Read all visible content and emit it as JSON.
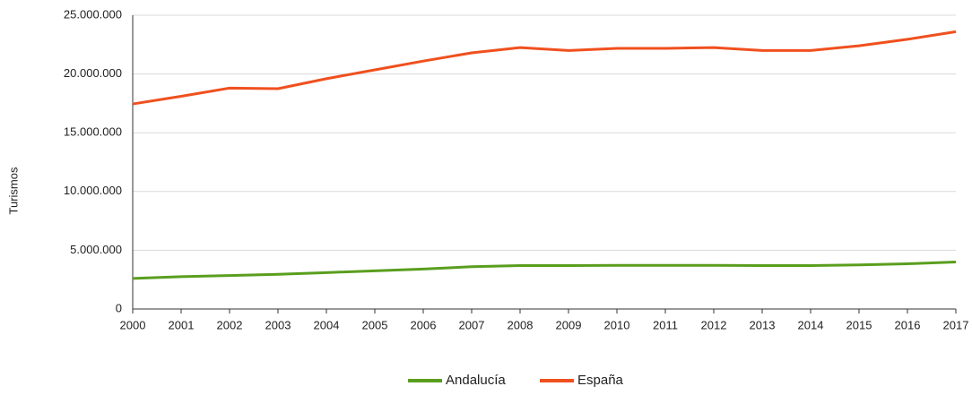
{
  "chart_data": {
    "type": "line",
    "ylabel": "Turismos",
    "x": [
      2000,
      2001,
      2002,
      2003,
      2004,
      2005,
      2006,
      2007,
      2008,
      2009,
      2010,
      2011,
      2012,
      2013,
      2014,
      2015,
      2016,
      2017
    ],
    "xlim": [
      2000,
      2017
    ],
    "xticks": [
      2000,
      2001,
      2002,
      2003,
      2004,
      2005,
      2006,
      2007,
      2008,
      2009,
      2010,
      2011,
      2012,
      2013,
      2014,
      2015,
      2016,
      2017
    ],
    "ylim": [
      0,
      25000000
    ],
    "yticks": [
      0,
      {
        "value": 5000000,
        "label": "5.000.000"
      },
      {
        "value": 10000000,
        "label": "10.000.000"
      },
      {
        "value": 15000000,
        "label": "15.000.000"
      },
      {
        "value": 20000000,
        "label": "20.000.000"
      },
      {
        "value": 25000000,
        "label": "25.000.000"
      }
    ],
    "grid": true,
    "legend": "bottom",
    "series": [
      {
        "name": "Andalucía",
        "color": "#5a9e1e",
        "values": [
          2600000,
          2750000,
          2850000,
          2950000,
          3100000,
          3250000,
          3400000,
          3600000,
          3700000,
          3700000,
          3720000,
          3720000,
          3720000,
          3700000,
          3700000,
          3750000,
          3850000,
          4000000
        ]
      },
      {
        "name": "España",
        "color": "#f0501e",
        "values": [
          17450000,
          18100000,
          18800000,
          18750000,
          19600000,
          20350000,
          21100000,
          21800000,
          22250000,
          22000000,
          22180000,
          22180000,
          22250000,
          22000000,
          22000000,
          22400000,
          22950000,
          23600000
        ]
      }
    ]
  }
}
